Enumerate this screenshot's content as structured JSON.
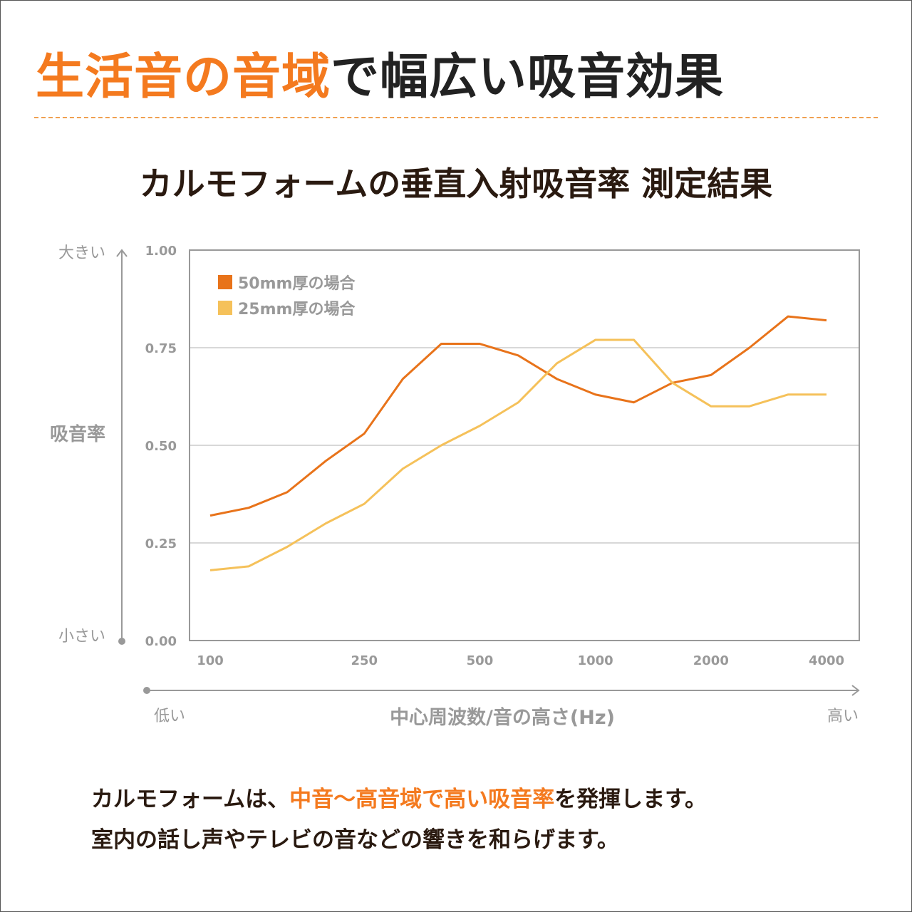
{
  "headline": {
    "highlight": "生活音の音域",
    "rest": "で幅広い吸音効果"
  },
  "subtitle": "カルモフォームの垂直入射吸音率 測定結果",
  "footer": {
    "line1_a": "カルモフォームは、",
    "line1_highlight": "中音〜高音域で高い吸音率",
    "line1_b": "を発揮します。",
    "line2": "室内の話し声やテレビの音などの響きを和らげます。"
  },
  "colors": {
    "accent": "#f47a1f",
    "series_50mm": "#e8731a",
    "series_25mm": "#f5c15a"
  },
  "chart_data": {
    "type": "line",
    "title": "カルモフォームの垂直入射吸音率 測定結果",
    "xlabel": "中心周波数/音の高さ(Hz)",
    "ylabel": "吸音率",
    "x_low_label": "低い",
    "x_high_label": "高い",
    "y_high_label": "大きい",
    "y_low_label": "小さい",
    "x_scale": "log",
    "x": [
      100,
      125,
      160,
      200,
      250,
      315,
      400,
      500,
      630,
      800,
      1000,
      1250,
      1600,
      2000,
      2500,
      3150,
      4000
    ],
    "x_tick_values": [
      100,
      250,
      500,
      1000,
      2000,
      4000
    ],
    "x_tick_labels": [
      "100",
      "250",
      "500",
      "1000",
      "2000",
      "4000"
    ],
    "ylim": [
      0,
      1
    ],
    "y_ticks": [
      0,
      0.25,
      0.5,
      0.75,
      1
    ],
    "y_tick_labels": [
      "0.00",
      "0.25",
      "0.50",
      "0.75",
      "1.00"
    ],
    "grid": true,
    "legend_position": "top-left",
    "series": [
      {
        "name": "50mm厚の場合",
        "color": "#e8731a",
        "values": [
          0.32,
          0.34,
          0.38,
          0.46,
          0.53,
          0.67,
          0.76,
          0.76,
          0.73,
          0.67,
          0.63,
          0.61,
          0.66,
          0.68,
          0.75,
          0.83,
          0.82
        ]
      },
      {
        "name": "25mm厚の場合",
        "color": "#f5c15a",
        "values": [
          0.18,
          0.19,
          0.24,
          0.3,
          0.35,
          0.44,
          0.5,
          0.55,
          0.61,
          0.71,
          0.77,
          0.77,
          0.66,
          0.6,
          0.6,
          0.63,
          0.63
        ]
      }
    ]
  }
}
